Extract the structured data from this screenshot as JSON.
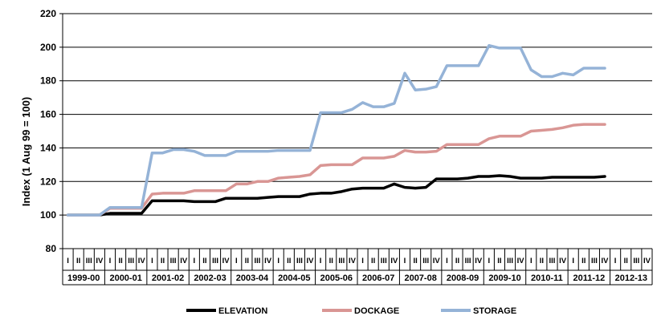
{
  "chart_data": {
    "type": "line",
    "ylabel": "Index (1 Aug 99 = 100)",
    "ylim": [
      80,
      220
    ],
    "yticks": [
      80,
      100,
      120,
      140,
      160,
      180,
      200,
      220
    ],
    "grid": "horizontal",
    "legend_position": "bottom",
    "quarter_labels": [
      "I",
      "II",
      "III",
      "IV"
    ],
    "years": [
      "1999-00",
      "2000-01",
      "2001-02",
      "2002-03",
      "2003-04",
      "2004-05",
      "2005-06",
      "2006-07",
      "2007-08",
      "2008-09",
      "2009-10",
      "2010-11",
      "2011-12",
      "2012-13"
    ],
    "x_start": 0,
    "series": [
      {
        "name": "ELEVATION",
        "color": "#000000",
        "x": [
          0,
          1,
          2,
          3,
          4,
          5,
          6,
          7,
          8,
          9,
          10,
          11,
          12,
          13,
          14,
          15,
          16,
          17,
          18,
          19,
          20,
          21,
          22,
          23,
          24,
          25,
          26,
          27,
          28,
          29,
          30,
          31,
          32,
          33,
          34,
          35,
          36,
          37,
          38,
          39,
          40,
          41,
          42,
          43,
          44,
          45,
          46,
          47,
          48,
          49,
          50,
          51
        ],
        "values": [
          100,
          100,
          100,
          100,
          101,
          101,
          101,
          101,
          108.5,
          108.5,
          108.5,
          108.5,
          108,
          108,
          108,
          110,
          110,
          110,
          110,
          110.5,
          111,
          111,
          111,
          112.5,
          113,
          113,
          114,
          115.5,
          116,
          116,
          116,
          118.5,
          116.5,
          116,
          116.5,
          121.5,
          121.5,
          121.5,
          122,
          123,
          123,
          123.5,
          123,
          122,
          122,
          122,
          122.5,
          122.5,
          122.5,
          122.5,
          122.5,
          123
        ]
      },
      {
        "name": "DOCKAGE",
        "color": "#d99694",
        "x": [
          0,
          1,
          2,
          3,
          4,
          5,
          6,
          7,
          8,
          9,
          10,
          11,
          12,
          13,
          14,
          15,
          16,
          17,
          18,
          19,
          20,
          21,
          22,
          23,
          24,
          25,
          26,
          27,
          28,
          29,
          30,
          31,
          32,
          33,
          34,
          35,
          36,
          37,
          38,
          39,
          40,
          41,
          42,
          43,
          44,
          45,
          46,
          47,
          48,
          49,
          50,
          51
        ],
        "values": [
          100,
          100,
          100,
          100,
          104,
          104,
          104,
          104,
          112.5,
          113,
          113,
          113,
          114.5,
          114.5,
          114.5,
          114.5,
          118.5,
          118.5,
          120,
          120,
          122,
          122.5,
          123,
          124,
          129.5,
          130,
          130,
          130,
          134,
          134,
          134,
          135,
          138.5,
          137.5,
          137.5,
          138,
          142,
          142,
          142,
          142,
          145.5,
          147,
          147,
          147,
          150,
          150.5,
          151,
          152,
          153.5,
          154,
          154,
          154
        ]
      },
      {
        "name": "STORAGE",
        "color": "#95b3d7",
        "x": [
          0,
          1,
          2,
          3,
          4,
          5,
          6,
          7,
          8,
          9,
          10,
          11,
          12,
          13,
          14,
          15,
          16,
          17,
          18,
          19,
          20,
          21,
          22,
          23,
          24,
          25,
          26,
          27,
          28,
          29,
          30,
          31,
          32,
          33,
          34,
          35,
          36,
          37,
          38,
          39,
          40,
          41,
          42,
          43,
          44,
          45,
          46,
          47,
          48,
          49,
          50,
          51
        ],
        "values": [
          100,
          100,
          100,
          100,
          104.5,
          104.5,
          104.5,
          104.5,
          137,
          137,
          139,
          139,
          138,
          135.5,
          135.5,
          135.5,
          138,
          138,
          138,
          138,
          138.5,
          138.5,
          138.5,
          138.5,
          161,
          161,
          161,
          163,
          167,
          164.5,
          164.5,
          166.5,
          184.5,
          174.5,
          175,
          176.5,
          189,
          189,
          189,
          189,
          201,
          199.5,
          199.5,
          199.5,
          186.5,
          182.5,
          182.5,
          184.5,
          183.5,
          187.5,
          187.5,
          187.5
        ]
      }
    ]
  }
}
